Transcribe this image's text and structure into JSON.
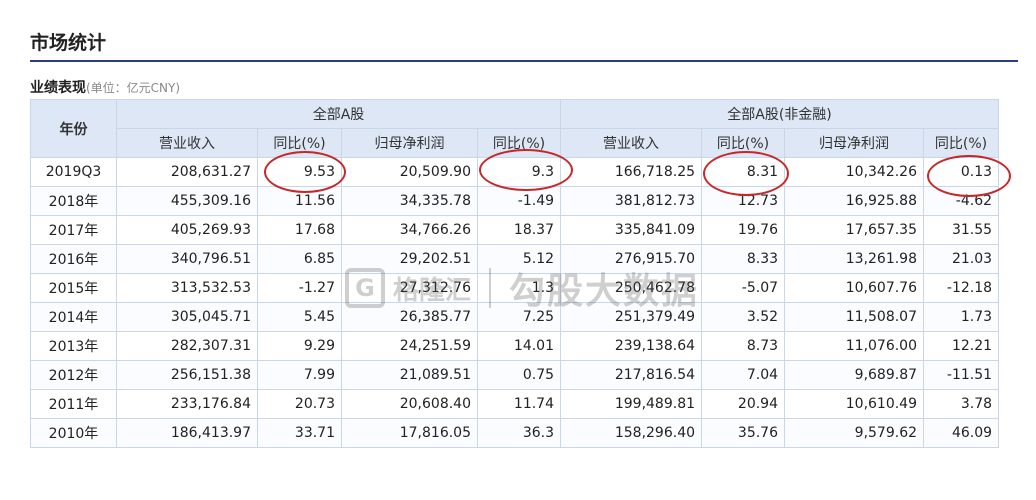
{
  "page": {
    "title": "市场统计"
  },
  "section": {
    "heading": "业绩表现",
    "unit": "(单位：亿元CNY)"
  },
  "table": {
    "year_header": "年份",
    "groups": [
      "全部A股",
      "全部A股(非金融)"
    ],
    "columns": [
      "营业收入",
      "同比(%)",
      "归母净利润",
      "同比(%)",
      "营业收入",
      "同比(%)",
      "归母净利润",
      "同比(%)"
    ],
    "rows": [
      [
        "2019Q3",
        "208,631.27",
        "9.53",
        "20,509.90",
        "9.3",
        "166,718.25",
        "8.31",
        "10,342.26",
        "0.13"
      ],
      [
        "2018年",
        "455,309.16",
        "11.56",
        "34,335.78",
        "-1.49",
        "381,812.73",
        "12.73",
        "16,925.88",
        "-4.62"
      ],
      [
        "2017年",
        "405,269.93",
        "17.68",
        "34,766.26",
        "18.37",
        "335,841.09",
        "19.76",
        "17,657.35",
        "31.55"
      ],
      [
        "2016年",
        "340,796.51",
        "6.85",
        "29,202.51",
        "5.12",
        "276,915.70",
        "8.33",
        "13,261.98",
        "21.03"
      ],
      [
        "2015年",
        "313,532.53",
        "-1.27",
        "27,312.76",
        "1.3",
        "250,462.78",
        "-5.07",
        "10,607.76",
        "-12.18"
      ],
      [
        "2014年",
        "305,045.71",
        "5.45",
        "26,385.77",
        "7.25",
        "251,379.49",
        "3.52",
        "11,508.07",
        "1.73"
      ],
      [
        "2013年",
        "282,307.31",
        "9.29",
        "24,251.59",
        "14.01",
        "239,138.64",
        "8.73",
        "11,076.00",
        "12.21"
      ],
      [
        "2012年",
        "256,151.38",
        "7.99",
        "21,089.51",
        "0.75",
        "217,816.54",
        "7.04",
        "9,689.87",
        "-11.51"
      ],
      [
        "2011年",
        "233,176.84",
        "20.73",
        "20,608.40",
        "11.74",
        "199,489.81",
        "20.94",
        "10,610.49",
        "3.78"
      ],
      [
        "2010年",
        "186,413.97",
        "33.71",
        "17,816.05",
        "36.3",
        "158,296.40",
        "35.76",
        "9,579.62",
        "46.09"
      ]
    ]
  },
  "watermark": {
    "logo": "G",
    "name": "格隆汇",
    "slogan": "勾股大数据"
  },
  "colors": {
    "accent": "#2c3e7a",
    "header_bg": "#dde7f5",
    "border": "#c9d6ea",
    "annotation": "#c62828"
  }
}
